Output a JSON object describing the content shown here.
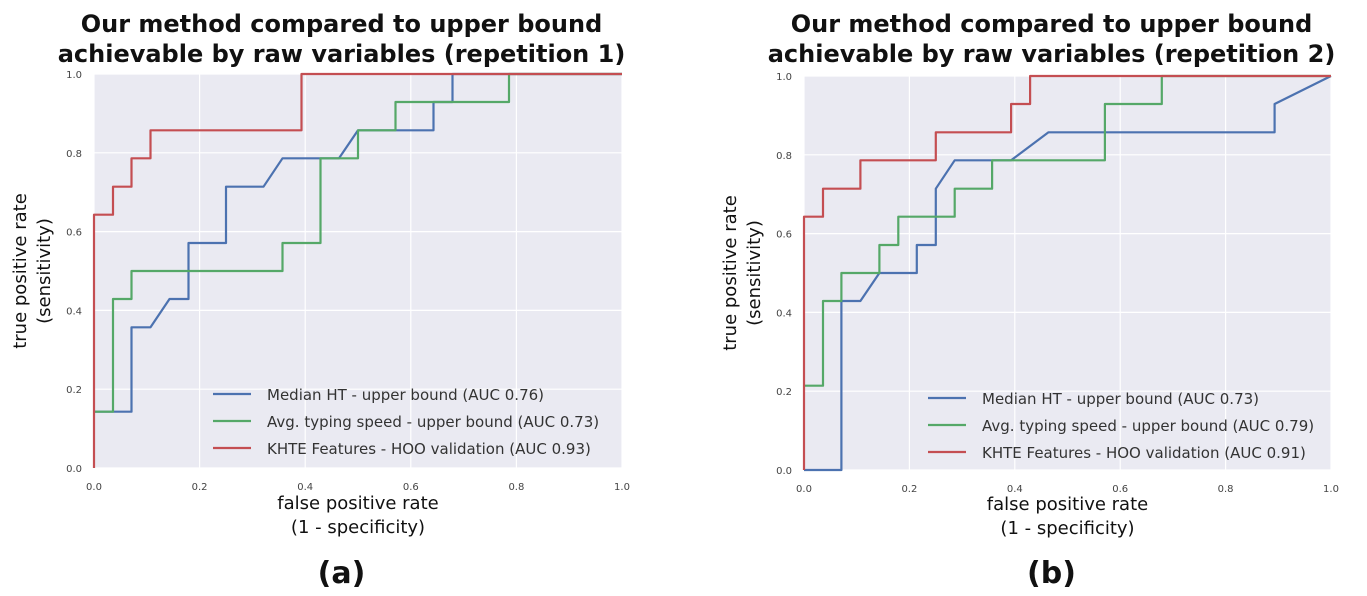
{
  "chart_data": [
    {
      "type": "line",
      "panel_label": "(a)",
      "title_lines": [
        "Our method compared to upper bound",
        "achievable by raw variables (repetition 1)"
      ],
      "xlabel_lines": [
        "false positive rate",
        "(1 - specificity)"
      ],
      "ylabel_lines": [
        "true positive rate",
        "(sensitivity)"
      ],
      "xlim": [
        0,
        1
      ],
      "ylim": [
        0,
        1
      ],
      "xticks": [
        "0.0",
        "0.2",
        "0.4",
        "0.6",
        "0.8",
        "1.0"
      ],
      "yticks": [
        "0.0",
        "0.2",
        "0.4",
        "0.6",
        "0.8",
        "1.0"
      ],
      "grid": true,
      "legend_position": "lower-right",
      "series": [
        {
          "name": "Median HT - upper bound (AUC 0.76)",
          "color": "#4c72b0",
          "points": [
            [
              0,
              0.143
            ],
            [
              0.071,
              0.143
            ],
            [
              0.071,
              0.357
            ],
            [
              0.107,
              0.357
            ],
            [
              0.143,
              0.429
            ],
            [
              0.179,
              0.429
            ],
            [
              0.179,
              0.571
            ],
            [
              0.25,
              0.571
            ],
            [
              0.25,
              0.714
            ],
            [
              0.321,
              0.714
            ],
            [
              0.357,
              0.786
            ],
            [
              0.464,
              0.786
            ],
            [
              0.5,
              0.857
            ],
            [
              0.643,
              0.857
            ],
            [
              0.643,
              0.929
            ],
            [
              0.679,
              0.929
            ],
            [
              0.679,
              1.0
            ],
            [
              1.0,
              1.0
            ]
          ]
        },
        {
          "name": "Avg. typing speed - upper bound (AUC 0.73)",
          "color": "#55a868",
          "points": [
            [
              0,
              0.143
            ],
            [
              0.036,
              0.143
            ],
            [
              0.036,
              0.429
            ],
            [
              0.071,
              0.429
            ],
            [
              0.071,
              0.5
            ],
            [
              0.357,
              0.5
            ],
            [
              0.357,
              0.571
            ],
            [
              0.429,
              0.571
            ],
            [
              0.429,
              0.786
            ],
            [
              0.5,
              0.786
            ],
            [
              0.5,
              0.857
            ],
            [
              0.571,
              0.857
            ],
            [
              0.571,
              0.929
            ],
            [
              0.786,
              0.929
            ],
            [
              0.786,
              1.0
            ],
            [
              1.0,
              1.0
            ]
          ]
        },
        {
          "name": "KHTE Features - HOO validation (AUC 0.93)",
          "color": "#c44e52",
          "points": [
            [
              0,
              0
            ],
            [
              0,
              0.643
            ],
            [
              0.036,
              0.643
            ],
            [
              0.036,
              0.714
            ],
            [
              0.071,
              0.714
            ],
            [
              0.071,
              0.786
            ],
            [
              0.107,
              0.786
            ],
            [
              0.107,
              0.857
            ],
            [
              0.393,
              0.857
            ],
            [
              0.393,
              1.0
            ],
            [
              1.0,
              1.0
            ]
          ]
        }
      ]
    },
    {
      "type": "line",
      "panel_label": "(b)",
      "title_lines": [
        "Our method compared to upper bound",
        "achievable by raw variables (repetition 2)"
      ],
      "xlabel_lines": [
        "false positive rate",
        "(1 - specificity)"
      ],
      "ylabel_lines": [
        "true positive rate",
        "(sensitivity)"
      ],
      "xlim": [
        0,
        1
      ],
      "ylim": [
        0,
        1
      ],
      "xticks": [
        "0.0",
        "0.2",
        "0.4",
        "0.6",
        "0.8",
        "1.0"
      ],
      "yticks": [
        "0.0",
        "0.2",
        "0.4",
        "0.6",
        "0.8",
        "1.0"
      ],
      "grid": true,
      "legend_position": "lower-right",
      "series": [
        {
          "name": "Median HT - upper bound (AUC 0.73)",
          "color": "#4c72b0",
          "points": [
            [
              0,
              0
            ],
            [
              0.071,
              0
            ],
            [
              0.071,
              0.429
            ],
            [
              0.107,
              0.429
            ],
            [
              0.143,
              0.5
            ],
            [
              0.214,
              0.5
            ],
            [
              0.214,
              0.571
            ],
            [
              0.25,
              0.571
            ],
            [
              0.25,
              0.714
            ],
            [
              0.286,
              0.786
            ],
            [
              0.393,
              0.786
            ],
            [
              0.464,
              0.857
            ],
            [
              0.893,
              0.857
            ],
            [
              0.893,
              0.929
            ],
            [
              1.0,
              1.0
            ]
          ]
        },
        {
          "name": "Avg. typing speed - upper bound (AUC 0.79)",
          "color": "#55a868",
          "points": [
            [
              0,
              0.214
            ],
            [
              0.036,
              0.214
            ],
            [
              0.036,
              0.429
            ],
            [
              0.071,
              0.429
            ],
            [
              0.071,
              0.5
            ],
            [
              0.143,
              0.5
            ],
            [
              0.143,
              0.571
            ],
            [
              0.179,
              0.571
            ],
            [
              0.179,
              0.643
            ],
            [
              0.286,
              0.643
            ],
            [
              0.286,
              0.714
            ],
            [
              0.357,
              0.714
            ],
            [
              0.357,
              0.786
            ],
            [
              0.571,
              0.786
            ],
            [
              0.571,
              0.929
            ],
            [
              0.679,
              0.929
            ],
            [
              0.679,
              1.0
            ],
            [
              1.0,
              1.0
            ]
          ]
        },
        {
          "name": "KHTE Features - HOO validation (AUC 0.91)",
          "color": "#c44e52",
          "points": [
            [
              0,
              0
            ],
            [
              0,
              0.643
            ],
            [
              0.036,
              0.643
            ],
            [
              0.036,
              0.714
            ],
            [
              0.107,
              0.714
            ],
            [
              0.107,
              0.786
            ],
            [
              0.25,
              0.786
            ],
            [
              0.25,
              0.857
            ],
            [
              0.357,
              0.857
            ],
            [
              0.393,
              0.857
            ],
            [
              0.393,
              0.929
            ],
            [
              0.429,
              0.929
            ],
            [
              0.429,
              1.0
            ],
            [
              1.0,
              1.0
            ]
          ]
        }
      ]
    }
  ]
}
